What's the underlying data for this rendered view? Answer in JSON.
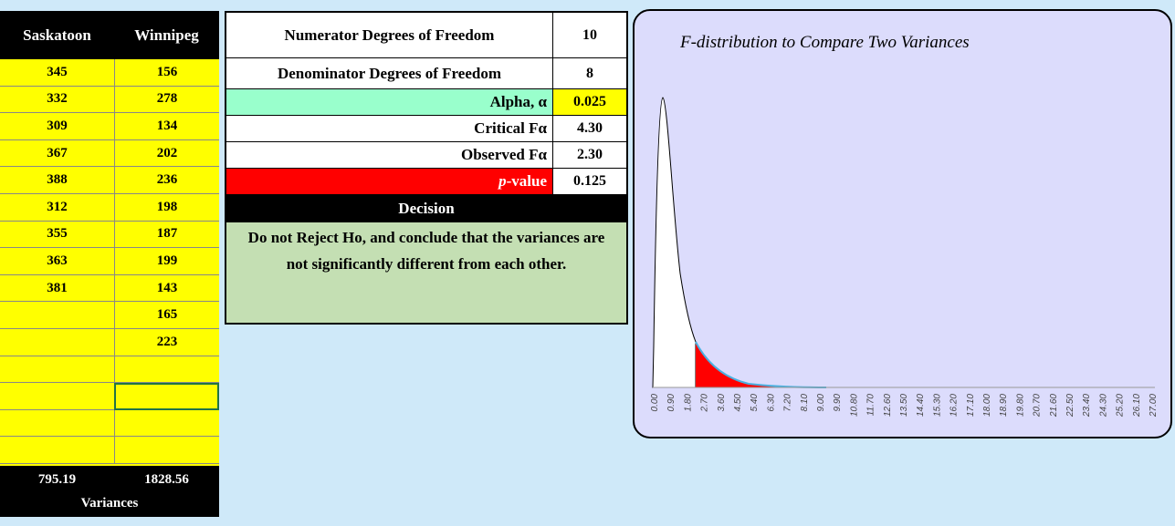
{
  "data_table": {
    "headers": [
      "Saskatoon",
      "Winnipeg"
    ],
    "rows": [
      [
        345,
        156
      ],
      [
        332,
        278
      ],
      [
        309,
        134
      ],
      [
        367,
        202
      ],
      [
        388,
        236
      ],
      [
        312,
        198
      ],
      [
        355,
        187
      ],
      [
        363,
        199
      ],
      [
        381,
        143
      ],
      [
        null,
        165
      ],
      [
        null,
        223
      ]
    ],
    "variances": [
      795.19,
      1828.56
    ],
    "variances_label": "Variances"
  },
  "stats": {
    "rows": [
      {
        "label": "Numerator Degrees of Freedom",
        "value": 10
      },
      {
        "label": "Denominator Degrees of Freedom",
        "value": 8
      },
      {
        "label": "Alpha, α",
        "value": 0.025
      },
      {
        "label": "Critical Fα",
        "value": "4.30"
      },
      {
        "label": "Observed Fα",
        "value": "2.30"
      },
      {
        "label_var": "p",
        "label": "-value",
        "value": 0.125
      }
    ],
    "decision_header": "Decision",
    "decision": "Do not Reject Ho, and conclude that the variances are not significantly different from each other."
  },
  "chart": {
    "title": "F-distribution to Compare Two Variances",
    "x_labels": [
      "0.00",
      "0.90",
      "1.80",
      "2.70",
      "3.60",
      "4.50",
      "5.40",
      "6.30",
      "7.20",
      "8.10",
      "9.00",
      "9.90",
      "10.80",
      "11.70",
      "12.60",
      "13.50",
      "14.40",
      "15.30",
      "16.20",
      "17.10",
      "18.00",
      "18.90",
      "19.80",
      "20.70",
      "21.60",
      "22.50",
      "23.40",
      "24.30",
      "25.20",
      "26.10",
      "27.00"
    ]
  }
}
